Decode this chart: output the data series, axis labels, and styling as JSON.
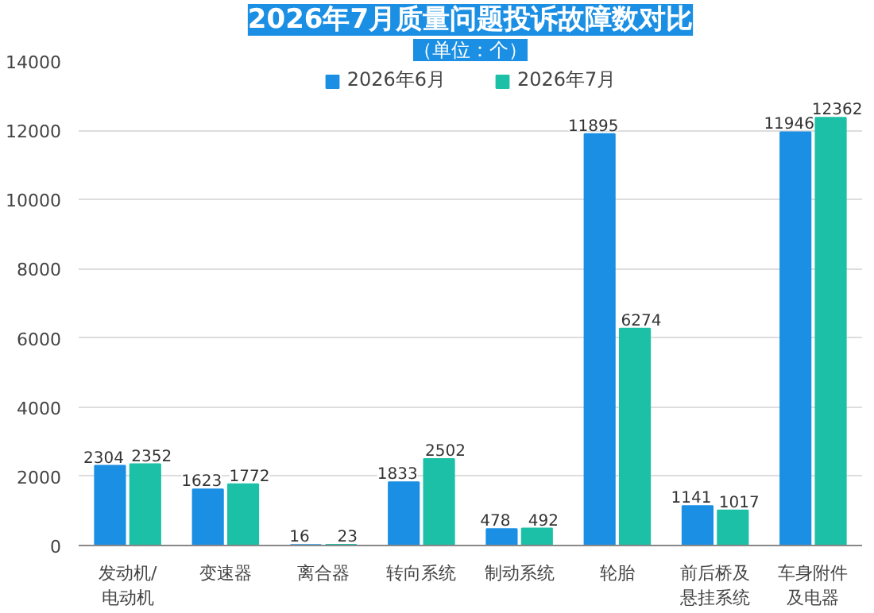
{
  "chart_data": {
    "type": "bar",
    "title": "2026年7月质量问题投诉故障数对比",
    "subtitle": "（单位：个）",
    "categories": [
      "发动机/电动机",
      "变速器",
      "离合器",
      "转向系统",
      "制动系统",
      "轮胎",
      "前后桥及悬挂系统",
      "车身附件及电器"
    ],
    "series": [
      {
        "name": "2026年6月",
        "color": "#1a8fe3",
        "values": [
          2304,
          1623,
          16,
          1833,
          478,
          11895,
          1141,
          11946
        ]
      },
      {
        "name": "2026年7月",
        "color": "#1cc0a6",
        "values": [
          2352,
          1772,
          23,
          2502,
          492,
          6274,
          1017,
          12362
        ]
      }
    ],
    "ylim": [
      0,
      14000
    ],
    "yticks": [
      0,
      2000,
      4000,
      6000,
      8000,
      10000,
      12000,
      14000
    ],
    "grid": "y",
    "legend": "top",
    "data_labels": true
  }
}
